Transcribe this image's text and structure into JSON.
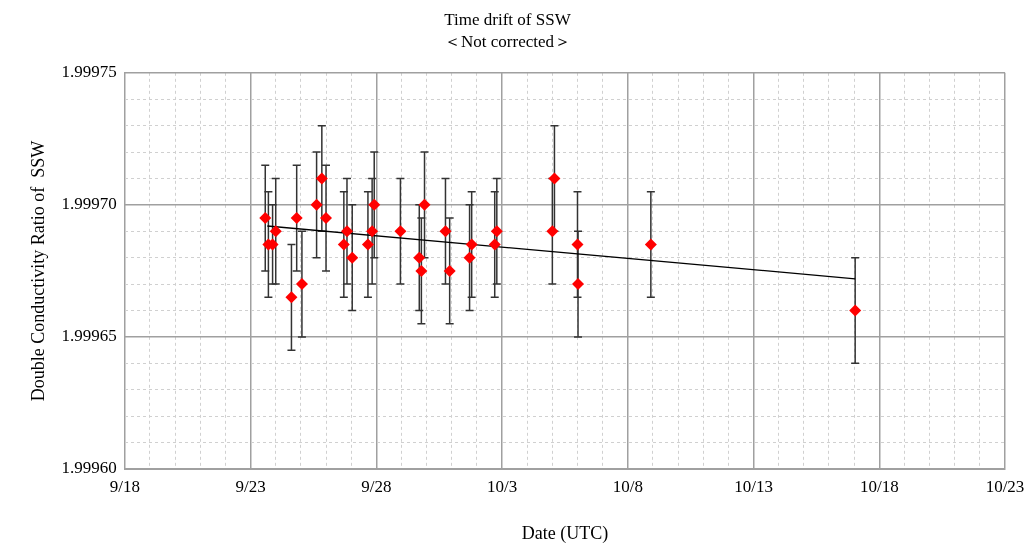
{
  "chart_data": {
    "type": "scatter",
    "title": "Time drift of SSW",
    "subtitle": "＜Not corrected＞",
    "xlabel": "Date (UTC)",
    "ylabel": "Double Conductivity Ratio of  SSW",
    "series": [
      {
        "color": "#ff0000",
        "marker": "diamond",
        "x": [
          "--09-23T14:00",
          "--09-23T17:00",
          "--09-23T21:00",
          "--09-24T00:00",
          "--09-24T15:00",
          "--09-24T20:00",
          "--09-25T01:00",
          "--09-25T15:00",
          "--09-25T20:00",
          "--09-26T00:00",
          "--09-26T17:00",
          "--09-26T20:00",
          "--09-27T01:00",
          "--09-27T16:00",
          "--09-27T20:00",
          "--09-27T22:00",
          "--09-28T23:00",
          "--09-29T17:00",
          "--09-29T19:00",
          "--09-29T22:00",
          "--09-30T18:00",
          "--09-30T22:00",
          "--10-01T17:00",
          "--10-01T19:00",
          "--10-02T17:00",
          "--10-02T19:00",
          "--10-05T00:00",
          "--10-05T02:00",
          "--10-06T00:00",
          "--10-06T00:30",
          "--10-08T22:00",
          "--10-17T01:00"
        ],
        "values": [
          1.999695,
          1.999685,
          1.999685,
          1.99969,
          1.999665,
          1.999695,
          1.99967,
          1.9997,
          1.99971,
          1.999695,
          1.999685,
          1.99969,
          1.99968,
          1.999685,
          1.99969,
          1.9997,
          1.99969,
          1.99968,
          1.999675,
          1.9997,
          1.99969,
          1.999675,
          1.99968,
          1.999685,
          1.999685,
          1.99969,
          1.99969,
          1.99971,
          1.999685,
          1.99967,
          1.999685,
          1.99966
        ],
        "errors": [
          2e-05,
          2e-05,
          1.5e-05,
          2e-05,
          2e-05,
          2e-05,
          2e-05,
          2e-05,
          2e-05,
          2e-05,
          2e-05,
          2e-05,
          2e-05,
          2e-05,
          2e-05,
          2e-05,
          2e-05,
          2e-05,
          2e-05,
          2e-05,
          2e-05,
          2e-05,
          2e-05,
          2e-05,
          2e-05,
          2e-05,
          2e-05,
          2e-05,
          2e-05,
          2e-05,
          2e-05,
          2e-05
        ]
      },
      {
        "type": "line",
        "color": "#000000",
        "marker": "none",
        "x": [
          "--09-23T16:00",
          "--10-17T01:00"
        ],
        "values": [
          1.999692,
          1.999672
        ]
      }
    ],
    "xlim": [
      "--09-18",
      "--10-23"
    ],
    "xticks": [
      {
        "value": "--09-18",
        "label": "9/18"
      },
      {
        "value": "--09-19",
        "label": null
      },
      {
        "value": "--09-20",
        "label": null
      },
      {
        "value": "--09-21",
        "label": null
      },
      {
        "value": "--09-22",
        "label": null
      },
      {
        "value": "--09-23",
        "label": "9/23"
      },
      {
        "value": "--09-24",
        "label": null
      },
      {
        "value": "--09-25",
        "label": null
      },
      {
        "value": "--09-26",
        "label": null
      },
      {
        "value": "--09-27",
        "label": null
      },
      {
        "value": "--09-28",
        "label": "9/28"
      },
      {
        "value": "--09-29",
        "label": null
      },
      {
        "value": "--09-30",
        "label": null
      },
      {
        "value": "--10-01",
        "label": null
      },
      {
        "value": "--10-02",
        "label": null
      },
      {
        "value": "--10-03",
        "label": "10/3"
      },
      {
        "value": "--10-04",
        "label": null
      },
      {
        "value": "--10-05",
        "label": null
      },
      {
        "value": "--10-06",
        "label": null
      },
      {
        "value": "--10-07",
        "label": null
      },
      {
        "value": "--10-08",
        "label": "10/8"
      },
      {
        "value": "--10-09",
        "label": null
      },
      {
        "value": "--10-10",
        "label": null
      },
      {
        "value": "--10-11",
        "label": null
      },
      {
        "value": "--10-12",
        "label": null
      },
      {
        "value": "--10-13",
        "label": "10/13"
      },
      {
        "value": "--10-14",
        "label": null
      },
      {
        "value": "--10-15",
        "label": null
      },
      {
        "value": "--10-16",
        "label": null
      },
      {
        "value": "--10-17",
        "label": null
      },
      {
        "value": "--10-18",
        "label": "10/18"
      },
      {
        "value": "--10-19",
        "label": null
      },
      {
        "value": "--10-20",
        "label": null
      },
      {
        "value": "--10-21",
        "label": null
      },
      {
        "value": "--10-22",
        "label": null
      },
      {
        "value": "--10-23",
        "label": "10/23"
      }
    ],
    "ylim": [
      1.9996,
      1.99975
    ],
    "yticks": [
      {
        "value": 1.9996,
        "label": "1.99960"
      },
      {
        "value": 1.99961,
        "label": null
      },
      {
        "value": 1.99962,
        "label": null
      },
      {
        "value": 1.99963,
        "label": null
      },
      {
        "value": 1.99964,
        "label": null
      },
      {
        "value": 1.99965,
        "label": "1.99965"
      },
      {
        "value": 1.99966,
        "label": null
      },
      {
        "value": 1.99967,
        "label": null
      },
      {
        "value": 1.99968,
        "label": null
      },
      {
        "value": 1.99969,
        "label": null
      },
      {
        "value": 1.9997,
        "label": "1.99970"
      },
      {
        "value": 1.99971,
        "label": null
      },
      {
        "value": 1.99972,
        "label": null
      },
      {
        "value": 1.99973,
        "label": null
      },
      {
        "value": 1.99974,
        "label": null
      },
      {
        "value": 1.99975,
        "label": "1.99975"
      }
    ],
    "grid": true,
    "legend": false
  }
}
